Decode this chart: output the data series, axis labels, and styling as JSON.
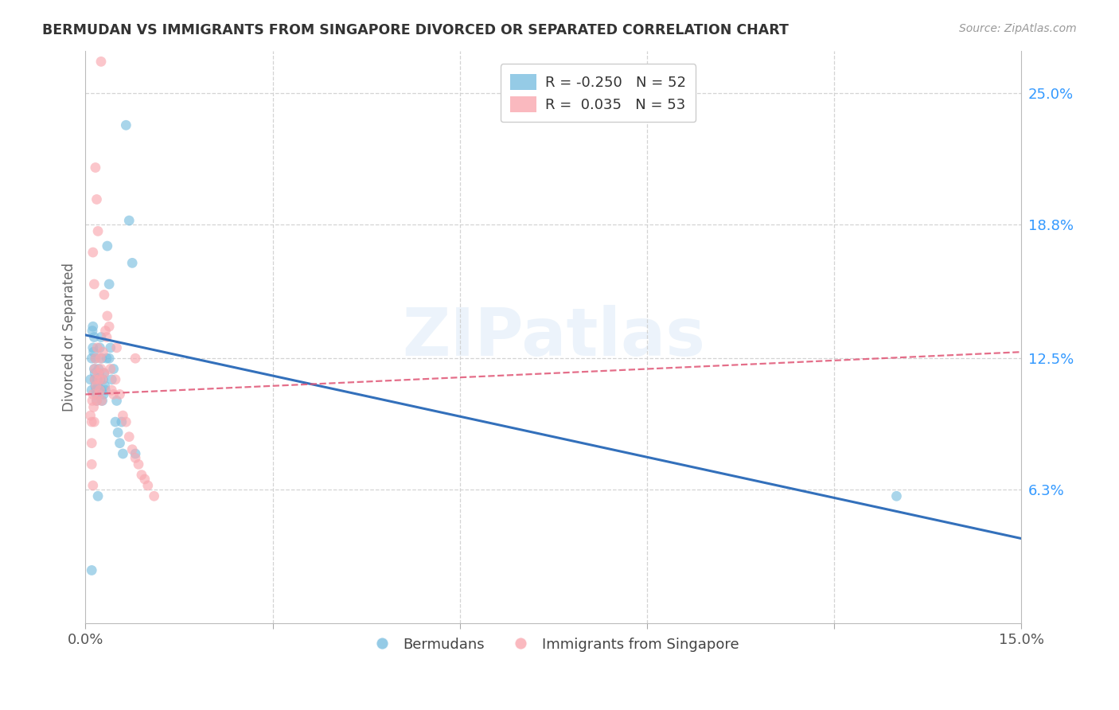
{
  "title": "BERMUDAN VS IMMIGRANTS FROM SINGAPORE DIVORCED OR SEPARATED CORRELATION CHART",
  "source_text": "Source: ZipAtlas.com",
  "ylabel": "Divorced or Separated",
  "xlim": [
    0.0,
    0.15
  ],
  "ylim": [
    0.0,
    0.27
  ],
  "ytick_values_right": [
    0.063,
    0.125,
    0.188,
    0.25
  ],
  "ytick_labels_right": [
    "6.3%",
    "12.5%",
    "18.8%",
    "25.0%"
  ],
  "xtick_positions": [
    0.0,
    0.03,
    0.06,
    0.09,
    0.12,
    0.15
  ],
  "xtick_labels": [
    "0.0%",
    "",
    "",
    "",
    "",
    "15.0%"
  ],
  "legend_blue_R": "-0.250",
  "legend_blue_N": "52",
  "legend_pink_R": " 0.035",
  "legend_pink_N": "53",
  "series_labels": [
    "Bermudans",
    "Immigrants from Singapore"
  ],
  "watermark": "ZIPatlas",
  "blue_scatter_color": "#7bbfe0",
  "pink_scatter_color": "#f9a8b0",
  "blue_line_color": "#3370bb",
  "pink_line_color": "#e05575",
  "grid_color": "#d0d0d0",
  "bg_color": "#ffffff",
  "title_color": "#333333",
  "right_tick_color": "#3399ff",
  "blue_trend_x": [
    0.0,
    0.15
  ],
  "blue_trend_y": [
    0.136,
    0.04
  ],
  "pink_trend_x": [
    0.0,
    0.15
  ],
  "pink_trend_y": [
    0.108,
    0.128
  ],
  "blue_x": [
    0.0008,
    0.001,
    0.001,
    0.0011,
    0.0012,
    0.0012,
    0.0013,
    0.0014,
    0.0014,
    0.0015,
    0.0015,
    0.0016,
    0.0016,
    0.0017,
    0.0017,
    0.0018,
    0.0019,
    0.002,
    0.002,
    0.0021,
    0.0022,
    0.0023,
    0.0024,
    0.0025,
    0.0025,
    0.0026,
    0.0027,
    0.0028,
    0.0029,
    0.003,
    0.0031,
    0.0032,
    0.0034,
    0.0035,
    0.0038,
    0.004,
    0.0042,
    0.0045,
    0.0048,
    0.005,
    0.0052,
    0.0055,
    0.0058,
    0.006,
    0.0065,
    0.007,
    0.0075,
    0.008,
    0.0038,
    0.002,
    0.13,
    0.001
  ],
  "blue_y": [
    0.115,
    0.11,
    0.125,
    0.138,
    0.14,
    0.13,
    0.128,
    0.12,
    0.135,
    0.118,
    0.115,
    0.112,
    0.125,
    0.108,
    0.11,
    0.105,
    0.115,
    0.112,
    0.108,
    0.12,
    0.118,
    0.13,
    0.115,
    0.11,
    0.135,
    0.125,
    0.105,
    0.115,
    0.108,
    0.118,
    0.112,
    0.11,
    0.125,
    0.178,
    0.16,
    0.13,
    0.115,
    0.12,
    0.095,
    0.105,
    0.09,
    0.085,
    0.095,
    0.08,
    0.235,
    0.19,
    0.17,
    0.08,
    0.125,
    0.06,
    0.06,
    0.025
  ],
  "pink_x": [
    0.0008,
    0.001,
    0.0011,
    0.0012,
    0.0013,
    0.0014,
    0.0015,
    0.0015,
    0.0016,
    0.0017,
    0.0018,
    0.0019,
    0.002,
    0.0021,
    0.0022,
    0.0023,
    0.0024,
    0.0025,
    0.0026,
    0.0027,
    0.0028,
    0.003,
    0.0032,
    0.0034,
    0.0035,
    0.0038,
    0.004,
    0.0042,
    0.0045,
    0.0048,
    0.005,
    0.0055,
    0.006,
    0.0065,
    0.007,
    0.0075,
    0.008,
    0.0085,
    0.009,
    0.0095,
    0.01,
    0.011,
    0.0012,
    0.0014,
    0.0016,
    0.0018,
    0.002,
    0.0025,
    0.003,
    0.001,
    0.001,
    0.0012,
    0.008
  ],
  "pink_y": [
    0.098,
    0.095,
    0.105,
    0.108,
    0.102,
    0.095,
    0.12,
    0.115,
    0.125,
    0.112,
    0.105,
    0.13,
    0.118,
    0.108,
    0.115,
    0.11,
    0.125,
    0.12,
    0.105,
    0.115,
    0.128,
    0.118,
    0.138,
    0.135,
    0.145,
    0.14,
    0.12,
    0.11,
    0.108,
    0.115,
    0.13,
    0.108,
    0.098,
    0.095,
    0.088,
    0.082,
    0.078,
    0.075,
    0.07,
    0.068,
    0.065,
    0.06,
    0.175,
    0.16,
    0.215,
    0.2,
    0.185,
    0.265,
    0.155,
    0.085,
    0.075,
    0.065,
    0.125
  ]
}
